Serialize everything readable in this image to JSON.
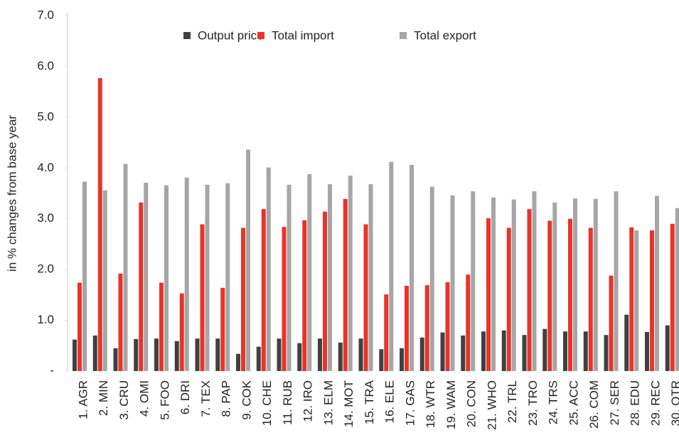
{
  "chart_data": {
    "type": "bar",
    "y_label": "in % changes from base year",
    "categories": [
      "1. AGR",
      "2. MIN",
      "3. CRU",
      "4. OMI",
      "5. FOO",
      "6. DRI",
      "7. TEX",
      "8. PAP",
      "9. COK",
      "10. CHE",
      "11. RUB",
      "12. IRO",
      "13. ELM",
      "14. MOT",
      "15. TRA",
      "16. ELE",
      "17. GAS",
      "18. WTR",
      "19. WAM",
      "20. CON",
      "21. WHO",
      "22. TRL",
      "23. TRO",
      "24. TRS",
      "25. ACC",
      "26. COM",
      "27. SER",
      "28. EDU",
      "29. REC",
      "30. OTR"
    ],
    "series": [
      {
        "name": "Output price",
        "color": "#404040",
        "values": [
          0.62,
          0.7,
          0.45,
          0.63,
          0.64,
          0.59,
          0.64,
          0.64,
          0.34,
          0.48,
          0.64,
          0.55,
          0.64,
          0.56,
          0.64,
          0.43,
          0.45,
          0.66,
          0.76,
          0.7,
          0.78,
          0.8,
          0.71,
          0.83,
          0.78,
          0.78,
          0.71,
          1.11,
          0.77,
          0.9
        ]
      },
      {
        "name": "Total import",
        "color": "#e8342a",
        "values": [
          1.74,
          5.77,
          1.92,
          3.32,
          1.74,
          1.53,
          2.89,
          1.64,
          2.82,
          3.19,
          2.84,
          2.97,
          3.14,
          3.39,
          2.89,
          1.51,
          1.68,
          1.69,
          1.75,
          1.9,
          3.01,
          2.82,
          3.19,
          2.96,
          3.0,
          2.82,
          1.88,
          2.83,
          2.77,
          2.9
        ]
      },
      {
        "name": "Total export",
        "color": "#a6a6a6",
        "values": [
          3.73,
          3.56,
          4.08,
          3.71,
          3.66,
          3.81,
          3.67,
          3.7,
          4.36,
          4.01,
          3.67,
          3.88,
          3.68,
          3.85,
          3.68,
          4.12,
          4.06,
          3.63,
          3.46,
          3.54,
          3.42,
          3.38,
          3.54,
          3.32,
          3.4,
          3.39,
          3.54,
          2.77,
          3.45,
          3.21
        ]
      }
    ],
    "ylim": [
      0,
      7
    ],
    "yticks": [
      {
        "value": 0,
        "label": "-"
      },
      {
        "value": 1,
        "label": "1.0"
      },
      {
        "value": 2,
        "label": "2.0"
      },
      {
        "value": 3,
        "label": "3.0"
      },
      {
        "value": 4,
        "label": "4.0"
      },
      {
        "value": 5,
        "label": "5.0"
      },
      {
        "value": 6,
        "label": "6.0"
      },
      {
        "value": 7,
        "label": "7.0"
      }
    ],
    "grid": false,
    "legend": "top"
  }
}
